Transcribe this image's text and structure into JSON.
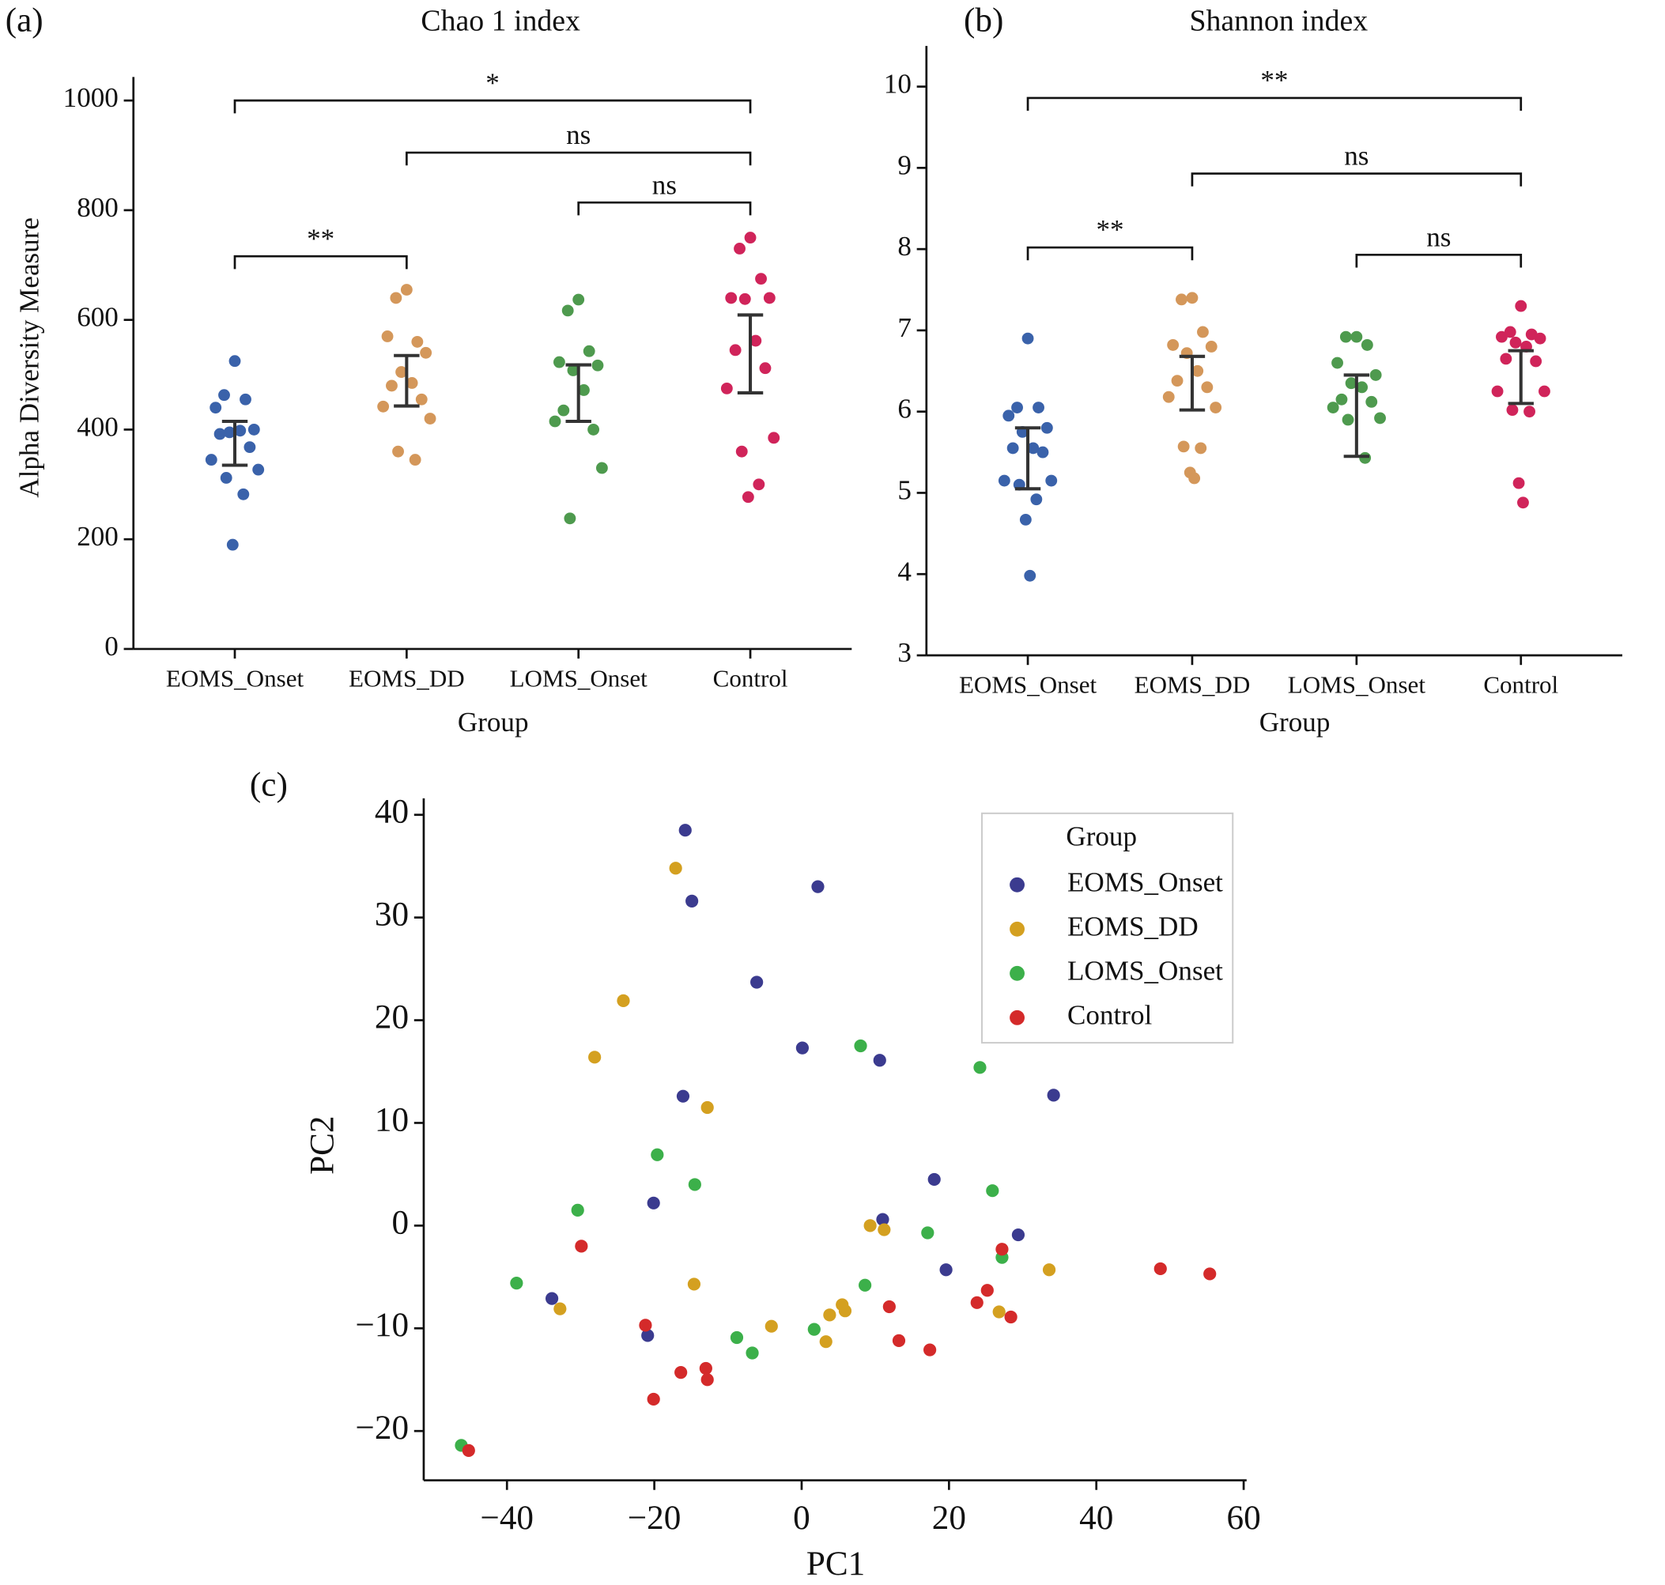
{
  "chart_data": [
    {
      "type": "strip",
      "panel_label": "(a)",
      "title": "Chao 1 index",
      "x_label": "Group",
      "y_label": "Alpha  Diversity Measure",
      "categories": [
        "EOMS_Onset",
        "EOMS_DD",
        "LOMS_Onset",
        "Control"
      ],
      "colors": [
        "#3a62aa",
        "#d4975a",
        "#4e9a4e",
        "#d0245a"
      ],
      "values": [
        [
          525,
          463,
          455,
          440,
          400,
          395,
          398,
          392,
          368,
          345,
          327,
          312,
          282,
          190
        ],
        [
          655,
          640,
          560,
          570,
          540,
          505,
          485,
          480,
          455,
          442,
          420,
          360,
          345
        ],
        [
          637,
          617,
          543,
          523,
          517,
          508,
          472,
          435,
          400,
          415,
          330,
          238
        ],
        [
          750,
          730,
          675,
          640,
          640,
          638,
          562,
          545,
          512,
          475,
          385,
          360,
          300,
          277
        ]
      ],
      "intervals": [
        [
          335,
          415
        ],
        [
          443,
          535
        ],
        [
          415,
          518
        ],
        [
          467,
          609
        ]
      ],
      "comparisons": [
        {
          "from": 0,
          "to": 3,
          "y": 1000,
          "label": "*"
        },
        {
          "from": 1,
          "to": 3,
          "y": 905,
          "label": "ns"
        },
        {
          "from": 2,
          "to": 3,
          "y": 814,
          "label": "ns"
        },
        {
          "from": 0,
          "to": 1,
          "y": 716,
          "label": "**"
        }
      ],
      "ylim": [
        0,
        1043
      ],
      "yticks": [
        0,
        200,
        400,
        600,
        800,
        1000
      ]
    },
    {
      "type": "strip",
      "panel_label": "(b)",
      "title": "Shannon index",
      "x_label": "Group",
      "categories": [
        "EOMS_Onset",
        "EOMS_DD",
        "LOMS_Onset",
        "Control"
      ],
      "colors": [
        "#3a62aa",
        "#d4975a",
        "#4e9a4e",
        "#d0245a"
      ],
      "values": [
        [
          6.9,
          6.05,
          6.05,
          5.95,
          5.8,
          5.75,
          5.55,
          5.55,
          5.5,
          5.15,
          5.15,
          5.1,
          4.92,
          4.67,
          3.98
        ],
        [
          7.4,
          7.38,
          6.98,
          6.82,
          6.8,
          6.72,
          6.5,
          6.38,
          6.3,
          6.18,
          6.05,
          5.57,
          5.55,
          5.25,
          5.18
        ],
        [
          6.92,
          6.92,
          6.82,
          6.6,
          6.45,
          6.35,
          6.3,
          6.15,
          6.12,
          6.05,
          5.92,
          5.9,
          5.43
        ],
        [
          7.3,
          6.98,
          6.95,
          6.92,
          6.9,
          6.85,
          6.8,
          6.65,
          6.62,
          6.25,
          6.25,
          6.02,
          6.0,
          5.12,
          4.88
        ]
      ],
      "intervals": [
        [
          5.05,
          5.8
        ],
        [
          6.02,
          6.68
        ],
        [
          5.45,
          6.45
        ],
        [
          6.1,
          6.75
        ]
      ],
      "comparisons": [
        {
          "from": 0,
          "to": 3,
          "y": 9.86,
          "label": "**"
        },
        {
          "from": 1,
          "to": 3,
          "y": 8.93,
          "label": "ns"
        },
        {
          "from": 0,
          "to": 1,
          "y": 8.02,
          "label": "**"
        },
        {
          "from": 2,
          "to": 3,
          "y": 7.93,
          "label": "ns"
        }
      ],
      "ylim": [
        3,
        10.5
      ],
      "yticks": [
        3,
        4,
        5,
        6,
        7,
        8,
        9,
        10
      ]
    },
    {
      "type": "scatter",
      "panel_label": "(c)",
      "x_label": "PC1",
      "y_label": "PC2",
      "legend_title": "Group",
      "legend": "upper right",
      "series": [
        {
          "name": "EOMS_Onset",
          "color": "#3b3b8f",
          "x": [
            -15.8,
            2.2,
            -14.9,
            -6.1,
            0.1,
            10.6,
            34.2,
            -16.1,
            18.0,
            11.0,
            29.4,
            -20.1,
            19.6,
            -33.9,
            -20.9
          ],
          "values": [
            38.5,
            33.0,
            31.6,
            23.7,
            17.3,
            16.1,
            12.7,
            12.6,
            4.5,
            0.6,
            -0.9,
            2.2,
            -4.3,
            -7.1,
            -10.7
          ]
        },
        {
          "name": "EOMS_DD",
          "color": "#d4a020",
          "x": [
            -17.1,
            -24.2,
            -28.1,
            -12.8,
            9.3,
            11.2,
            -14.6,
            33.6,
            -32.8,
            -4.1,
            3.8,
            5.5,
            5.9,
            3.3,
            26.8
          ],
          "values": [
            34.8,
            21.9,
            16.4,
            11.5,
            0.0,
            -0.4,
            -5.7,
            -4.3,
            -8.1,
            -9.8,
            -8.7,
            -7.7,
            -8.3,
            -11.3,
            -8.4
          ]
        },
        {
          "name": "LOMS_Onset",
          "color": "#3cb04a",
          "x": [
            8.0,
            24.2,
            -19.6,
            -14.5,
            -30.4,
            25.9,
            17.1,
            27.2,
            -38.7,
            8.6,
            1.7,
            -8.8,
            -6.7,
            -46.2
          ],
          "values": [
            17.5,
            15.4,
            6.9,
            4.0,
            1.5,
            3.4,
            -0.7,
            -3.1,
            -5.6,
            -5.8,
            -10.1,
            -10.9,
            -12.4,
            -21.4
          ]
        },
        {
          "name": "Control",
          "color": "#d42a2a",
          "x": [
            -29.9,
            27.2,
            48.7,
            55.4,
            11.9,
            23.8,
            25.2,
            28.4,
            -21.2,
            13.2,
            17.4,
            -13.0,
            -16.4,
            -12.8,
            -20.1,
            -45.2
          ],
          "values": [
            -2.0,
            -2.3,
            -4.2,
            -4.7,
            -7.9,
            -7.5,
            -6.3,
            -8.9,
            -9.7,
            -11.2,
            -12.1,
            -13.9,
            -14.3,
            -15.0,
            -16.9,
            -21.9
          ]
        }
      ],
      "xlim": [
        -51.3,
        60.4
      ],
      "ylim": [
        -24.8,
        41.6
      ],
      "xticks": [
        {
          "value": -40,
          "label": "−40"
        },
        {
          "value": -20,
          "label": "−20"
        },
        0,
        20,
        40,
        60
      ],
      "yticks": [
        {
          "value": -20,
          "label": "−20"
        },
        {
          "value": -10,
          "label": "−10"
        },
        0,
        10,
        20,
        30,
        40
      ]
    }
  ]
}
